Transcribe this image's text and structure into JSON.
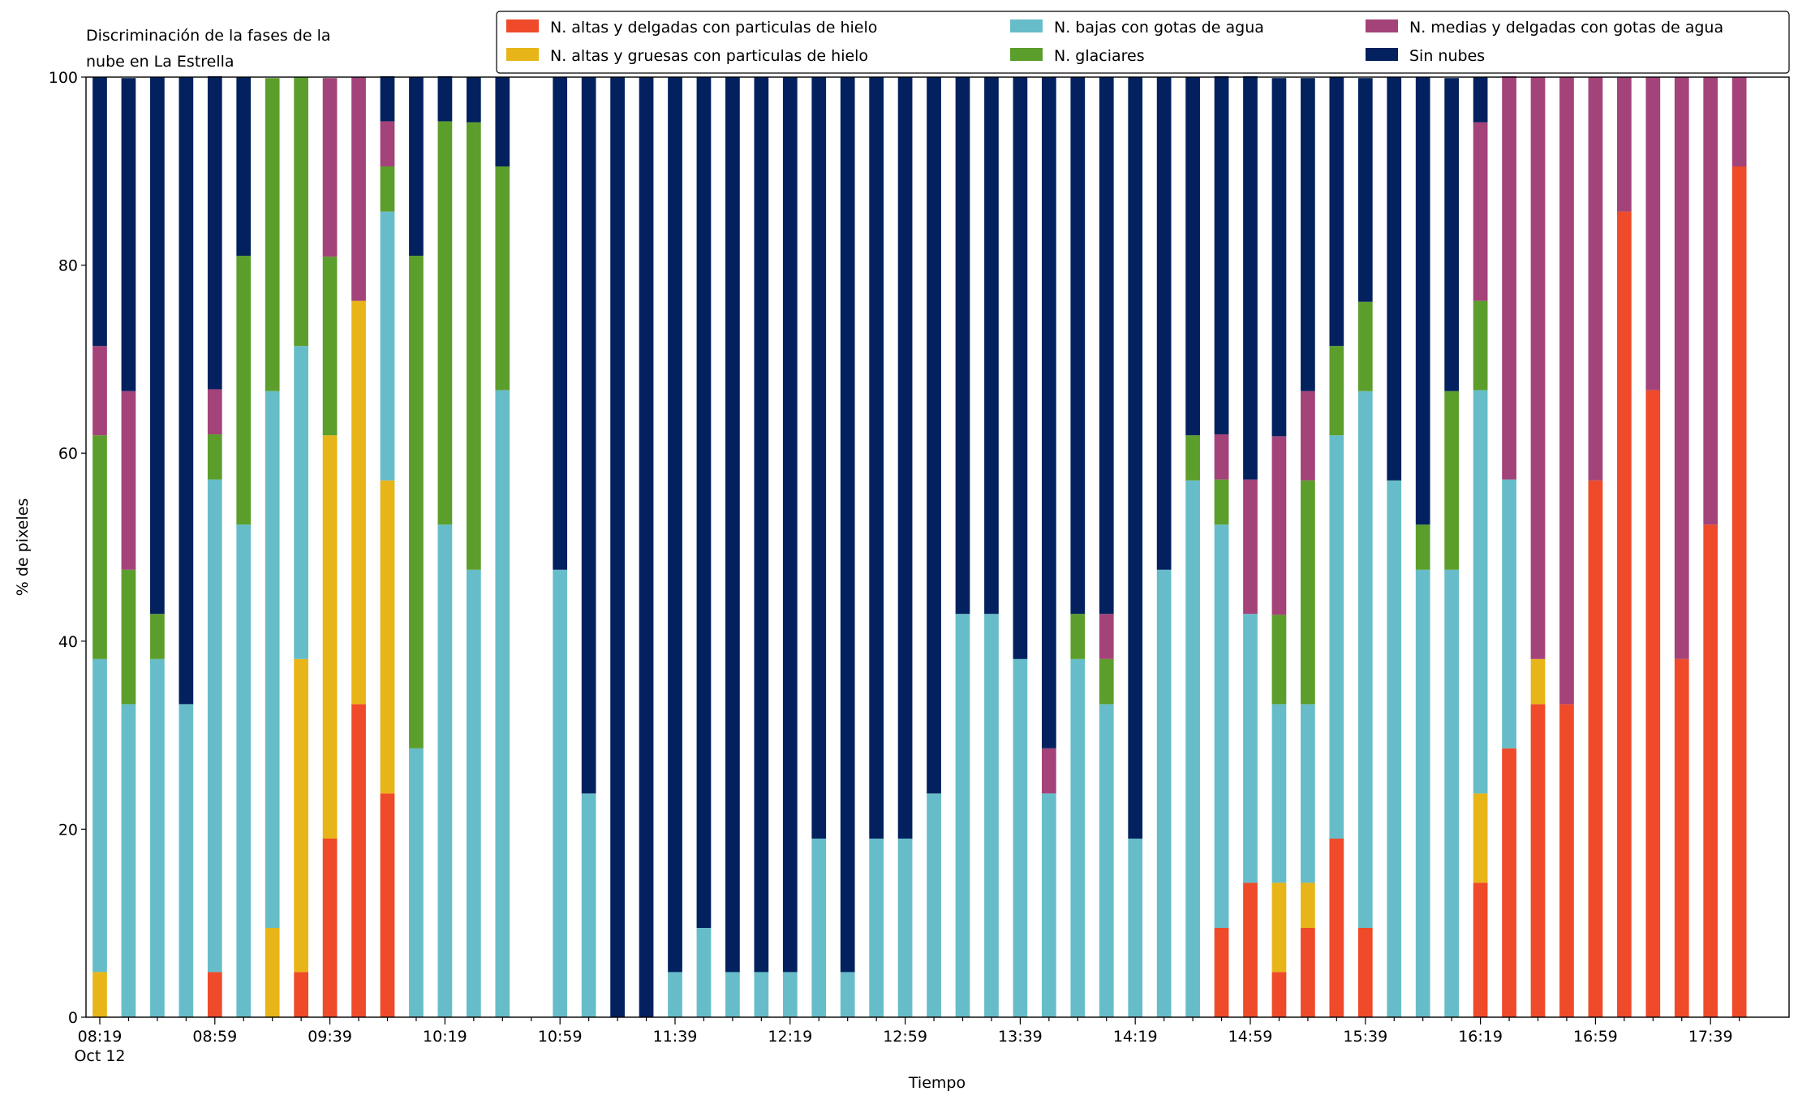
{
  "chart_data": {
    "type": "stacked_bar",
    "title": [
      "Discriminación de la fases de la",
      "nube en La Estrella"
    ],
    "xlabel": "Tiempo",
    "ylabel": "% de pixeles",
    "x_date_label": "Oct 12",
    "categories": [
      "08:19",
      null,
      null,
      null,
      "08:59",
      null,
      null,
      null,
      "09:39",
      null,
      null,
      null,
      "10:19",
      null,
      null,
      null,
      "10:59",
      null,
      null,
      null,
      "11:39",
      null,
      null,
      null,
      "12:19",
      null,
      null,
      null,
      "12:59",
      null,
      null,
      null,
      "13:39",
      null,
      null,
      null,
      "14:19",
      null,
      null,
      null,
      "14:59",
      null,
      null,
      null,
      "15:39",
      null,
      null,
      null,
      "16:19",
      null,
      null,
      null,
      "16:59",
      null,
      null,
      null,
      "17:39",
      null
    ],
    "ylim": [
      0,
      100
    ],
    "yticks": [
      0,
      20,
      40,
      60,
      80,
      100
    ],
    "series": [
      {
        "name": "N. altas y delgadas con particulas de hielo",
        "color": "#ef4a2a",
        "values": [
          0,
          0,
          0,
          0,
          4.8,
          0,
          0,
          4.8,
          19.0,
          33.3,
          23.8,
          0,
          0,
          0,
          0,
          null,
          0,
          0,
          0,
          0,
          0,
          0,
          0,
          0,
          0,
          0,
          0,
          0,
          0,
          0,
          0,
          0,
          0,
          0,
          0,
          0,
          0,
          0,
          0,
          9.5,
          14.3,
          4.8,
          9.5,
          19.0,
          9.5,
          0,
          0,
          0,
          14.3,
          28.6,
          33.3,
          33.3,
          57.1,
          85.7,
          66.7,
          38.1,
          52.4,
          90.5
        ]
      },
      {
        "name": "N. altas y gruesas con particulas de hielo",
        "color": "#e8b518",
        "values": [
          4.8,
          0,
          0,
          0,
          0,
          0,
          9.5,
          33.3,
          42.9,
          42.9,
          33.3,
          0,
          0,
          0,
          0,
          null,
          0,
          0,
          0,
          0,
          0,
          0,
          0,
          0,
          0,
          0,
          0,
          0,
          0,
          0,
          0,
          0,
          0,
          0,
          0,
          0,
          0,
          0,
          0,
          0,
          0,
          9.5,
          4.8,
          0,
          0,
          0,
          0,
          0,
          9.5,
          0,
          4.8,
          0,
          0,
          0,
          0,
          0,
          0,
          0
        ]
      },
      {
        "name": "N. bajas con gotas de agua",
        "color": "#66bdc9",
        "values": [
          33.3,
          33.3,
          38.1,
          33.3,
          52.4,
          52.4,
          57.1,
          33.3,
          0,
          0,
          28.6,
          28.6,
          52.4,
          47.6,
          66.7,
          null,
          47.6,
          23.8,
          0,
          0,
          4.8,
          9.5,
          4.8,
          4.8,
          4.8,
          19.0,
          4.8,
          19.0,
          19.0,
          23.8,
          42.9,
          42.9,
          38.1,
          23.8,
          38.1,
          33.3,
          19.0,
          47.6,
          57.1,
          42.9,
          28.6,
          19.0,
          19.0,
          42.9,
          57.1,
          57.1,
          47.6,
          47.6,
          42.9,
          28.6,
          0,
          0,
          0,
          0,
          0,
          0,
          0,
          0
        ]
      },
      {
        "name": "N. glaciares",
        "color": "#5c9e2b",
        "values": [
          23.8,
          14.3,
          4.8,
          0,
          4.8,
          28.6,
          33.3,
          28.6,
          19.0,
          0,
          4.8,
          52.4,
          42.9,
          47.6,
          23.8,
          null,
          0,
          0,
          0,
          0,
          0,
          0,
          0,
          0,
          0,
          0,
          0,
          0,
          0,
          0,
          0,
          0,
          0,
          0,
          4.8,
          4.8,
          0,
          0,
          4.8,
          4.8,
          0,
          9.5,
          23.8,
          9.5,
          9.5,
          0,
          4.8,
          19.0,
          9.5,
          0,
          0,
          0,
          0,
          0,
          0,
          0,
          0,
          0
        ]
      },
      {
        "name": "N. medias y delgadas con gotas de agua",
        "color": "#a3437a",
        "values": [
          9.5,
          19.0,
          0,
          0,
          4.8,
          0,
          0,
          0,
          19.0,
          23.8,
          4.8,
          0,
          0,
          0,
          0,
          null,
          0,
          0,
          0,
          0,
          0,
          0,
          0,
          0,
          0,
          0,
          0,
          0,
          0,
          0,
          0,
          0,
          0,
          4.8,
          0,
          4.8,
          0,
          0,
          0,
          4.8,
          14.3,
          19.0,
          9.5,
          0,
          0,
          0,
          0,
          0,
          19.0,
          42.9,
          61.9,
          66.7,
          42.9,
          14.3,
          33.3,
          61.9,
          47.6,
          9.5
        ]
      },
      {
        "name": "Sin nubes",
        "color": "#03215f",
        "values": [
          28.6,
          33.3,
          57.1,
          66.7,
          33.3,
          19.0,
          0,
          0,
          0,
          0,
          4.8,
          19.0,
          4.8,
          4.8,
          9.5,
          null,
          52.4,
          76.2,
          100,
          100,
          95.2,
          90.5,
          95.2,
          95.2,
          95.2,
          81.0,
          95.2,
          81.0,
          81.0,
          76.2,
          57.1,
          57.1,
          61.9,
          71.4,
          57.1,
          57.1,
          81.0,
          52.4,
          38.1,
          38.1,
          42.9,
          38.1,
          33.3,
          28.6,
          23.8,
          42.9,
          47.6,
          33.3,
          4.8,
          0,
          0,
          0,
          0,
          0,
          0,
          0,
          0,
          0
        ]
      }
    ]
  }
}
